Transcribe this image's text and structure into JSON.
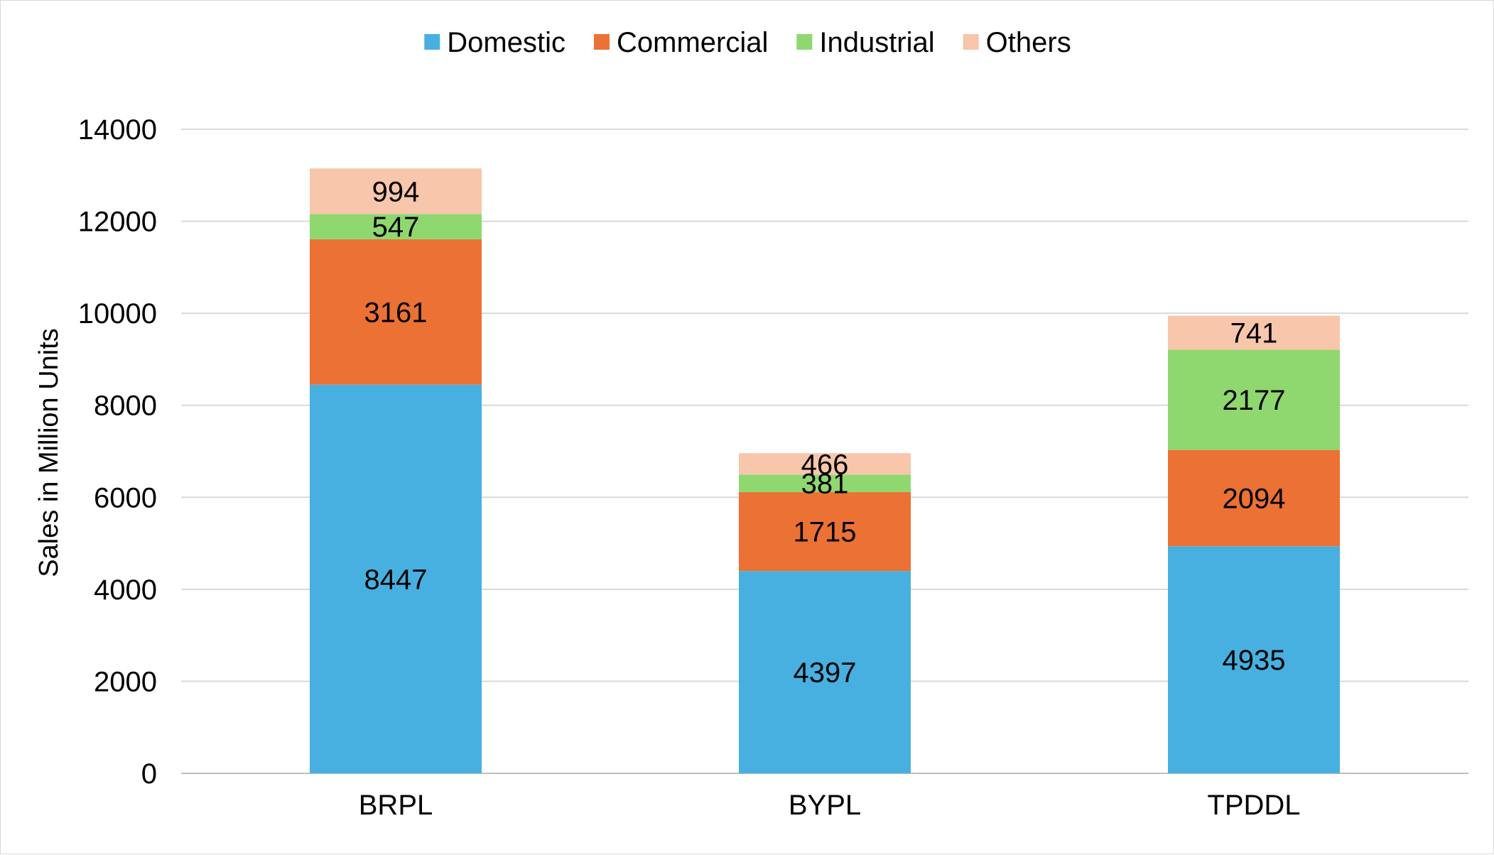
{
  "chart_data": {
    "type": "bar",
    "stacked": true,
    "title": "",
    "xlabel": "",
    "ylabel": "Sales in Million Units",
    "categories": [
      "BRPL",
      "BYPL",
      "TPDDL"
    ],
    "series": [
      {
        "name": "Domestic",
        "color": "#47b0e0",
        "values": [
          8447,
          4397,
          4935
        ]
      },
      {
        "name": "Commercial",
        "color": "#eb7134",
        "values": [
          3161,
          1715,
          2094
        ]
      },
      {
        "name": "Industrial",
        "color": "#8fd870",
        "values": [
          547,
          381,
          2177
        ]
      },
      {
        "name": "Others",
        "color": "#f7c6ab",
        "values": [
          994,
          466,
          741
        ]
      }
    ],
    "ylim": [
      0,
      14000
    ],
    "yticks": [
      0,
      2000,
      4000,
      6000,
      8000,
      10000,
      12000,
      14000
    ],
    "ytick_labels": [
      "0",
      "2000",
      "4000",
      "6000",
      "8000",
      "10000",
      "12000",
      "14000"
    ],
    "grid": true,
    "legend_position": "top-center",
    "data_labels": true
  }
}
